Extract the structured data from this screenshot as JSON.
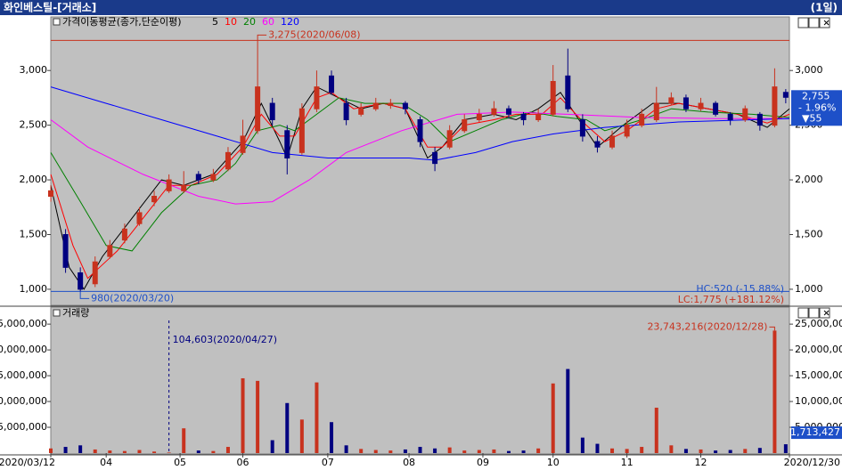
{
  "window": {
    "title": "화인베스틸-[거래소]",
    "period": "(1일)"
  },
  "chart_data": {
    "type": "candlestick",
    "legend_title": "가격이동평균(종가,단순이평)",
    "xlim": [
      0,
      200
    ],
    "xticks": [
      {
        "value": 0,
        "label": "2020/03/12"
      },
      {
        "value": 15,
        "label": "04"
      },
      {
        "value": 35,
        "label": "05"
      },
      {
        "value": 52,
        "label": "06"
      },
      {
        "value": 75,
        "label": "07"
      },
      {
        "value": 97,
        "label": "08"
      },
      {
        "value": 117,
        "label": "09"
      },
      {
        "value": 136,
        "label": "10"
      },
      {
        "value": 156,
        "label": "11"
      },
      {
        "value": 176,
        "label": "12"
      },
      {
        "value": 200,
        "label": "2020/12/30"
      }
    ],
    "ylim": [
      853,
      3490
    ],
    "yticks": [
      {
        "value": 1000,
        "label": "1,000"
      },
      {
        "value": 1500,
        "label": "1,500"
      },
      {
        "value": 2000,
        "label": "2,000"
      },
      {
        "value": 2500,
        "label": "2,500"
      },
      {
        "value": 3000,
        "label": "3,000"
      }
    ],
    "up_color": "#c8321e",
    "down_color": "#000080",
    "candles": {
      "x": [
        0,
        4,
        8,
        12,
        16,
        20,
        24,
        28,
        32,
        36,
        40,
        44,
        48,
        52,
        56,
        60,
        64,
        68,
        72,
        76,
        80,
        84,
        88,
        92,
        96,
        100,
        104,
        108,
        112,
        116,
        120,
        124,
        128,
        132,
        136,
        140,
        144,
        148,
        152,
        156,
        160,
        164,
        168,
        172,
        176,
        180,
        184,
        188,
        192,
        196,
        199
      ],
      "open": [
        1850,
        1500,
        1150,
        1050,
        1300,
        1450,
        1600,
        1800,
        1900,
        1900,
        2050,
        2000,
        2100,
        2250,
        2450,
        2700,
        2450,
        2250,
        2650,
        2950,
        2700,
        2600,
        2650,
        2680,
        2700,
        2550,
        2250,
        2300,
        2450,
        2550,
        2600,
        2650,
        2600,
        2550,
        2600,
        2950,
        2550,
        2350,
        2300,
        2400,
        2500,
        2550,
        2700,
        2750,
        2650,
        2700,
        2600,
        2550,
        2600,
        2500,
        2800
      ],
      "high": [
        1950,
        1550,
        1200,
        1300,
        1450,
        1600,
        1750,
        1900,
        2050,
        2080,
        2080,
        2100,
        2300,
        2550,
        3275,
        2750,
        2500,
        2700,
        3000,
        3000,
        2750,
        2700,
        2750,
        2740,
        2720,
        2580,
        2300,
        2500,
        2600,
        2650,
        2720,
        2680,
        2620,
        2650,
        3050,
        3200,
        2600,
        2400,
        2450,
        2550,
        2650,
        2850,
        2800,
        2780,
        2750,
        2720,
        2620,
        2680,
        2620,
        3020,
        2830
      ],
      "low": [
        1800,
        1150,
        980,
        1020,
        1280,
        1420,
        1580,
        1760,
        1880,
        1880,
        1960,
        1980,
        2080,
        2230,
        2420,
        2500,
        2050,
        2230,
        2620,
        2780,
        2500,
        2580,
        2630,
        2650,
        2600,
        2300,
        2080,
        2280,
        2430,
        2530,
        2580,
        2560,
        2500,
        2530,
        2580,
        2620,
        2350,
        2250,
        2280,
        2380,
        2480,
        2530,
        2680,
        2620,
        2630,
        2580,
        2500,
        2530,
        2450,
        2480,
        2700
      ],
      "close": [
        1900,
        1200,
        1000,
        1250,
        1400,
        1550,
        1700,
        1850,
        2000,
        1950,
        2000,
        2050,
        2250,
        2400,
        2850,
        2550,
        2200,
        2650,
        2850,
        2800,
        2550,
        2650,
        2700,
        2700,
        2650,
        2350,
        2150,
        2450,
        2550,
        2600,
        2650,
        2600,
        2550,
        2600,
        2900,
        2650,
        2400,
        2300,
        2400,
        2500,
        2600,
        2700,
        2750,
        2650,
        2700,
        2600,
        2550,
        2650,
        2500,
        2850,
        2755
      ]
    },
    "ma_series": [
      {
        "name": "5",
        "color": "#000000",
        "x": [
          0,
          5,
          9,
          14,
          22,
          30,
          36,
          44,
          52,
          57,
          62,
          64,
          68,
          72,
          78,
          84,
          90,
          96,
          102,
          106,
          112,
          120,
          126,
          132,
          138,
          144,
          148,
          155,
          163,
          170,
          178,
          186,
          194,
          200
        ],
        "values": [
          1950,
          1200,
          1000,
          1300,
          1650,
          2000,
          1950,
          2050,
          2350,
          2700,
          2350,
          2200,
          2650,
          2850,
          2750,
          2650,
          2700,
          2650,
          2200,
          2300,
          2550,
          2600,
          2550,
          2650,
          2800,
          2500,
          2300,
          2500,
          2700,
          2700,
          2650,
          2600,
          2480,
          2650
        ]
      },
      {
        "name": "10",
        "color": "#ff0000",
        "x": [
          0,
          6,
          10,
          18,
          25,
          32,
          38,
          45,
          52,
          57,
          62,
          66,
          72,
          76,
          82,
          90,
          96,
          102,
          106,
          112,
          120,
          126,
          133,
          138,
          145,
          150,
          156,
          164,
          170,
          178,
          186,
          194,
          200
        ],
        "values": [
          2050,
          1400,
          1100,
          1350,
          1650,
          1950,
          1950,
          2050,
          2300,
          2600,
          2400,
          2400,
          2750,
          2800,
          2650,
          2700,
          2650,
          2300,
          2300,
          2500,
          2550,
          2600,
          2600,
          2750,
          2500,
          2350,
          2450,
          2650,
          2700,
          2650,
          2600,
          2520,
          2600
        ]
      },
      {
        "name": "20",
        "color": "#008000",
        "x": [
          0,
          8,
          15,
          22,
          30,
          38,
          45,
          50,
          56,
          62,
          66,
          72,
          78,
          85,
          95,
          102,
          108,
          115,
          122,
          130,
          137,
          145,
          150,
          160,
          168,
          178,
          190,
          200
        ],
        "values": [
          2250,
          1800,
          1400,
          1350,
          1700,
          1950,
          2000,
          2150,
          2450,
          2500,
          2450,
          2600,
          2750,
          2700,
          2700,
          2550,
          2350,
          2450,
          2550,
          2620,
          2580,
          2550,
          2450,
          2550,
          2650,
          2620,
          2600,
          2570
        ]
      },
      {
        "name": "60",
        "color": "#ff00ff",
        "x": [
          0,
          10,
          25,
          40,
          50,
          60,
          70,
          80,
          95,
          110,
          125,
          140,
          160,
          180,
          200
        ],
        "values": [
          2550,
          2300,
          2050,
          1850,
          1780,
          1800,
          2000,
          2250,
          2450,
          2600,
          2620,
          2600,
          2570,
          2560,
          2560
        ]
      },
      {
        "name": "120",
        "color": "#0000ff",
        "x": [
          0,
          15,
          30,
          45,
          60,
          75,
          97,
          104,
          115,
          125,
          136,
          150,
          170,
          200
        ],
        "values": [
          2850,
          2700,
          2550,
          2400,
          2250,
          2200,
          2200,
          2180,
          2250,
          2350,
          2420,
          2480,
          2530,
          2560
        ]
      }
    ],
    "annotations": [
      {
        "text": "3,275(2020/06/08)",
        "x": 56,
        "value": 3275,
        "color": "#c8321e"
      },
      {
        "text": "980(2020/03/20)",
        "x": 8,
        "value": 980,
        "color": "#1e50c8"
      }
    ],
    "hc_text": "HC:520 (-15.88%)",
    "lc_text": "LC:1,775 (+181.12%)",
    "current": {
      "label": "2,755",
      "change_pct": "- 1.96%",
      "change": "▼55"
    },
    "volume": {
      "title": "거래량",
      "ylim": [
        0,
        28300000
      ],
      "yticks": [
        {
          "value": 5000000,
          "label": "5,000,000"
        },
        {
          "value": 10000000,
          "label": "10,000,000"
        },
        {
          "value": 15000000,
          "label": "15,000,000"
        },
        {
          "value": 20000000,
          "label": "20,000,000"
        },
        {
          "value": 25000000,
          "label": "25,000,000"
        }
      ],
      "values": [
        900000,
        1200000,
        1500000,
        700000,
        500000,
        400000,
        600000,
        300000,
        104603,
        4800000,
        500000,
        400000,
        1200000,
        14500000,
        14000000,
        2500000,
        9700000,
        6500000,
        13700000,
        6000000,
        1500000,
        800000,
        600000,
        500000,
        700000,
        1200000,
        900000,
        1100000,
        500000,
        600000,
        700000,
        400000,
        500000,
        900000,
        13500000,
        16300000,
        3000000,
        1800000,
        900000,
        800000,
        1200000,
        8800000,
        1500000,
        800000,
        700000,
        500000,
        600000,
        800000,
        1000000,
        23743216,
        1713427
      ],
      "min_text": "104,603(2020/04/27)",
      "max_text": "23,743,216(2020/12/28)",
      "current_label": "1,713,427"
    }
  }
}
